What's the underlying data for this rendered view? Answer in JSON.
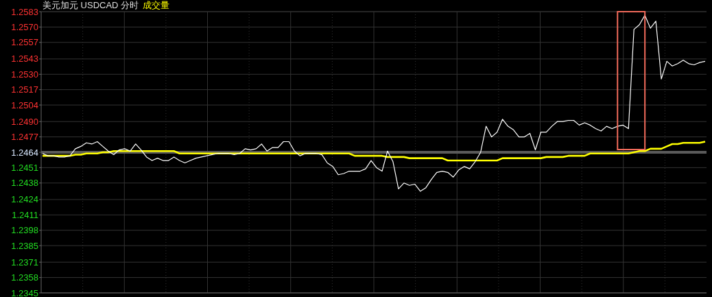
{
  "chart_data": {
    "type": "line",
    "title": "美元加元 USDCAD 分时",
    "categories": [
      null,
      null,
      null,
      null,
      null,
      null,
      null,
      null,
      null,
      null,
      null,
      null,
      null,
      null,
      null,
      null,
      null,
      null,
      null,
      null,
      null,
      null,
      null,
      null,
      null,
      null,
      null,
      null,
      null,
      null,
      null,
      null,
      null,
      null,
      null,
      null,
      null,
      null,
      null,
      null,
      null,
      null,
      null,
      null,
      null,
      null,
      null,
      null,
      null,
      null,
      null,
      null,
      null,
      null,
      null,
      null,
      null,
      null,
      null,
      null,
      null,
      null,
      null,
      null,
      null,
      null,
      null,
      null,
      null,
      null,
      null,
      null,
      null,
      null,
      null,
      null,
      null,
      null,
      null,
      null,
      null,
      null,
      null,
      null,
      null,
      null,
      null,
      null,
      null,
      null,
      null,
      null,
      null,
      null,
      null,
      null,
      null,
      null,
      null,
      null,
      null,
      null,
      null,
      null,
      null,
      null,
      null,
      null,
      null,
      null,
      null,
      null,
      null,
      null,
      null,
      null,
      null,
      null,
      null,
      null,
      null,
      null
    ],
    "series": [
      {
        "color": "#ffffff",
        "values": [
          1.2463,
          1.2461,
          1.2461,
          1.246,
          1.246,
          1.2461,
          1.2467,
          1.2469,
          1.2472,
          1.2471,
          1.2473,
          1.2469,
          1.2465,
          1.2462,
          1.2466,
          1.2467,
          1.2465,
          1.2471,
          1.2466,
          1.246,
          1.2457,
          1.2459,
          1.2457,
          1.2457,
          1.246,
          1.2457,
          1.2455,
          1.2457,
          1.2459,
          1.246,
          1.2461,
          1.2462,
          1.2463,
          1.2463,
          1.2463,
          1.2462,
          1.2463,
          1.2467,
          1.2466,
          1.2467,
          1.2471,
          1.2465,
          1.2468,
          1.2468,
          1.2473,
          1.2473,
          1.2465,
          1.2461,
          1.2463,
          1.2463,
          1.2463,
          1.2462,
          1.2455,
          1.2452,
          1.2445,
          1.2446,
          1.2448,
          1.2448,
          1.2448,
          1.245,
          1.2457,
          1.2451,
          1.2448,
          1.2465,
          1.2456,
          1.2433,
          1.2438,
          1.2436,
          1.2437,
          1.2431,
          1.2434,
          1.2441,
          1.2447,
          1.2448,
          1.2447,
          1.2443,
          1.2449,
          1.2452,
          1.245,
          1.2456,
          1.2464,
          1.2486,
          1.2477,
          1.2481,
          1.2492,
          1.2486,
          1.2483,
          1.2477,
          1.2477,
          1.248,
          1.2466,
          1.2481,
          1.2481,
          1.2486,
          1.249,
          1.249,
          1.2491,
          1.2491,
          1.2487,
          1.2489,
          1.2487,
          1.2484,
          1.2482,
          1.2486,
          1.2484,
          1.2486,
          1.2487,
          1.2484,
          1.2568,
          1.2572,
          1.258,
          1.2569,
          1.2575,
          1.2526,
          1.2541,
          1.2537,
          1.2539,
          1.2542,
          1.2539,
          1.2538,
          1.254,
          1.2541
        ]
      },
      {
        "name": "成交量",
        "color": "#ffff00",
        "values": [
          1.2461,
          1.2461,
          1.2461,
          1.2461,
          1.2461,
          1.2461,
          1.2462,
          1.2462,
          1.2463,
          1.2463,
          1.2463,
          1.2464,
          1.2464,
          1.2465,
          1.2465,
          1.2465,
          1.2465,
          1.2465,
          1.2465,
          1.2465,
          1.2465,
          1.2465,
          1.2465,
          1.2465,
          1.2465,
          1.2463,
          1.2463,
          1.2463,
          1.2463,
          1.2463,
          1.2463,
          1.2463,
          1.2463,
          1.2463,
          1.2463,
          1.2463,
          1.2463,
          1.2463,
          1.2463,
          1.2463,
          1.2463,
          1.2463,
          1.2463,
          1.2463,
          1.2463,
          1.2463,
          1.2463,
          1.2463,
          1.2463,
          1.2463,
          1.2463,
          1.2463,
          1.2463,
          1.2463,
          1.2463,
          1.2463,
          1.2463,
          1.2461,
          1.2461,
          1.2461,
          1.2461,
          1.2461,
          1.2461,
          1.246,
          1.246,
          1.246,
          1.246,
          1.2459,
          1.2459,
          1.2459,
          1.2459,
          1.2459,
          1.2459,
          1.2459,
          1.2457,
          1.2457,
          1.2457,
          1.2457,
          1.2457,
          1.2457,
          1.2457,
          1.2457,
          1.2457,
          1.2457,
          1.2459,
          1.2459,
          1.2459,
          1.2459,
          1.2459,
          1.2459,
          1.2459,
          1.2459,
          1.246,
          1.246,
          1.246,
          1.246,
          1.2461,
          1.2461,
          1.2461,
          1.2461,
          1.2463,
          1.2463,
          1.2463,
          1.2463,
          1.2463,
          1.2463,
          1.2463,
          1.2463,
          1.2464,
          1.2465,
          1.2465,
          1.2467,
          1.2467,
          1.2467,
          1.2469,
          1.2471,
          1.2471,
          1.2472,
          1.2472,
          1.2472,
          1.2472,
          1.2473
        ]
      }
    ],
    "ylim": [
      1.2345,
      1.2583
    ],
    "yticks": [
      1.2583,
      {
        "value": 1.257,
        "label": "1.2570"
      },
      1.2557,
      1.2543,
      {
        "value": 1.253,
        "label": "1.2530"
      },
      1.2517,
      1.2504,
      {
        "value": 1.249,
        "label": "1.2490"
      },
      1.2477,
      1.2464,
      1.2451,
      1.2438,
      1.2424,
      1.2411,
      1.2398,
      1.2385,
      1.2371,
      1.2358,
      1.2345
    ],
    "ref_lines": [
      {
        "axis": "y",
        "value": 1.2464,
        "color": "#5a5a5a"
      }
    ],
    "grid": true,
    "legend": "top left",
    "tick_labels": "y"
  }
}
